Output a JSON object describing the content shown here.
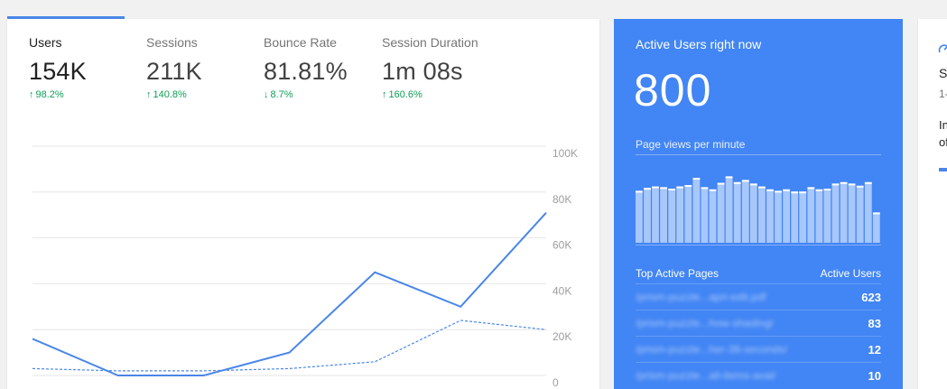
{
  "summary_tab": {
    "label": ""
  },
  "metrics": [
    {
      "label": "Users",
      "value": "154K",
      "change": "98.2%",
      "direction": "up",
      "active": true
    },
    {
      "label": "Sessions",
      "value": "211K",
      "change": "140.8%",
      "direction": "up",
      "active": false
    },
    {
      "label": "Bounce Rate",
      "value": "81.81%",
      "change": "8.7%",
      "direction": "down",
      "active": false
    },
    {
      "label": "Session Duration",
      "value": "1m 08s",
      "change": "160.6%",
      "direction": "up",
      "active": false
    }
  ],
  "chart_data": {
    "type": "line",
    "y_ticks": [
      "100K",
      "80K",
      "60K",
      "40K",
      "20K",
      "0"
    ],
    "ylim": [
      0,
      100000
    ],
    "grid": true,
    "series": [
      {
        "style": "solid",
        "color": "#4a86e8",
        "values": [
          16000,
          0,
          0,
          10000,
          45000,
          30000,
          71000
        ]
      },
      {
        "style": "dashed",
        "color": "#4a86e8",
        "values": [
          3000,
          2000,
          2000,
          3000,
          6000,
          24000,
          20000
        ]
      }
    ]
  },
  "realtime": {
    "title": "Active Users right now",
    "count": "800",
    "pageviews_label": "Page views per minute",
    "bars": [
      0.72,
      0.76,
      0.78,
      0.77,
      0.75,
      0.78,
      0.8,
      0.9,
      0.77,
      0.74,
      0.83,
      0.92,
      0.84,
      0.87,
      0.82,
      0.78,
      0.74,
      0.72,
      0.74,
      0.71,
      0.71,
      0.77,
      0.74,
      0.75,
      0.82,
      0.84,
      0.82,
      0.79,
      0.84,
      0.42
    ],
    "table": {
      "header_page": "Top Active Pages",
      "header_users": "Active Users",
      "rows": [
        {
          "page": "/prism-puzzle...apri-edit.pdf",
          "users": "623"
        },
        {
          "page": "/prism-puzzle...how-shading/",
          "users": "83"
        },
        {
          "page": "/prism-puzzle...her-36-seconds/",
          "users": "12"
        },
        {
          "page": "/prism-puzzle...all-items-aval/",
          "users": "10"
        }
      ]
    }
  },
  "side_card": {
    "icon": "speed-icon",
    "line1": "S",
    "line2": "1-",
    "line3a": "In",
    "line3b": "of"
  },
  "colors": {
    "accent": "#4285f4",
    "positive": "#0f9d58"
  }
}
